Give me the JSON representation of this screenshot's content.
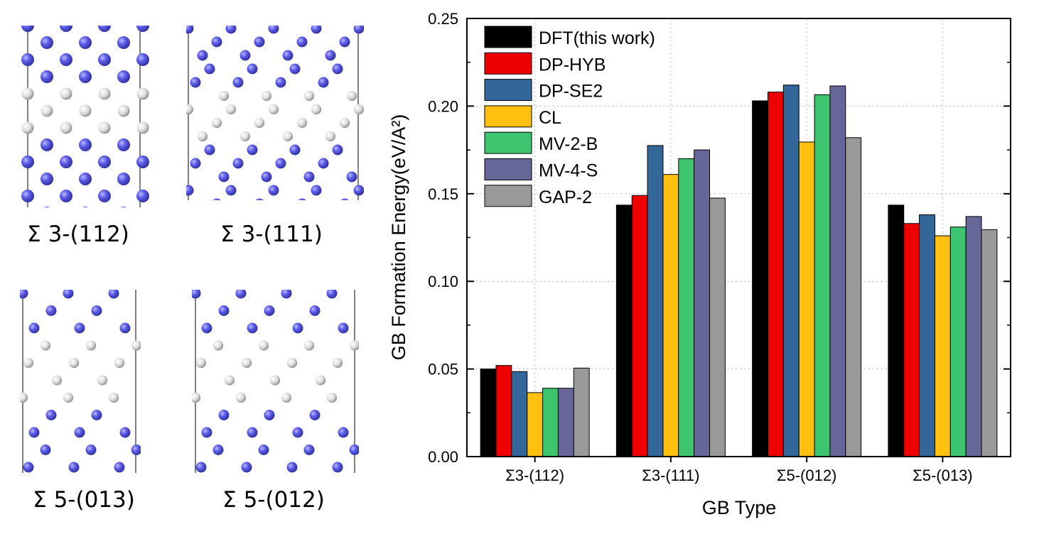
{
  "colors": {
    "w_atom": "#5a5ae6",
    "w_atom_edge": "#2e2e9a",
    "gb_atom": "#dcdcdc",
    "gb_atom_edge": "#8a8a8a"
  },
  "structures": [
    {
      "caption": "Σ 3-(112)"
    },
    {
      "caption": "Σ 3-(111)"
    },
    {
      "caption": "Σ 5-(013)"
    },
    {
      "caption": "Σ 5-(012)"
    }
  ],
  "chart_data": {
    "type": "bar",
    "title": "",
    "xlabel": "GB Type",
    "ylabel": "GB Formation Energy(eV/A²)",
    "ylim": [
      0,
      0.25
    ],
    "yticks": [
      "0.00",
      "0.05",
      "0.10",
      "0.15",
      "0.20",
      "0.25"
    ],
    "ytick_values": [
      0,
      0.05,
      0.1,
      0.15,
      0.2,
      0.25
    ],
    "grid": true,
    "legend_position": "top-left",
    "categories": [
      "Σ3-(112)",
      "Σ3-(111)",
      "Σ5-(012)",
      "Σ5-(013)"
    ],
    "series": [
      {
        "name": "DFT(this work)",
        "color": "#000000",
        "values": [
          0.05,
          0.1435,
          0.203,
          0.1435
        ]
      },
      {
        "name": "DP-HYB",
        "color": "#ee0000",
        "values": [
          0.052,
          0.149,
          0.208,
          0.133
        ]
      },
      {
        "name": "DP-SE2",
        "color": "#336699",
        "values": [
          0.0485,
          0.1775,
          0.212,
          0.138
        ]
      },
      {
        "name": "CL",
        "color": "#ffc010",
        "values": [
          0.0365,
          0.161,
          0.1795,
          0.126
        ]
      },
      {
        "name": "MV-2-B",
        "color": "#3cc46e",
        "values": [
          0.039,
          0.17,
          0.2065,
          0.131
        ]
      },
      {
        "name": "MV-4-S",
        "color": "#666699",
        "values": [
          0.039,
          0.175,
          0.2115,
          0.137
        ]
      },
      {
        "name": "GAP-2",
        "color": "#999999",
        "values": [
          0.0505,
          0.1475,
          0.182,
          0.1295
        ]
      }
    ]
  }
}
